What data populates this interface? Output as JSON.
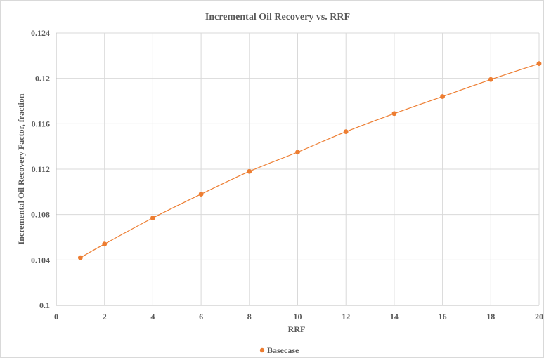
{
  "chart_data": {
    "type": "scatter",
    "title": "Incremental  Oil Recovery vs. RRF",
    "xlabel": "RRF",
    "ylabel": "Incremental  Oil Recovery Factor, fraction",
    "xlim": [
      0,
      20
    ],
    "ylim": [
      0.1,
      0.124
    ],
    "x_ticks": [
      "0",
      "2",
      "4",
      "6",
      "8",
      "10",
      "12",
      "14",
      "16",
      "18",
      "20"
    ],
    "y_ticks": [
      "0.1",
      "0.104",
      "0.108",
      "0.112",
      "0.116",
      "0.12",
      "0.124"
    ],
    "grid": true,
    "legend_position": "bottom",
    "series": [
      {
        "name": "Basecase",
        "color": "#ED7D31",
        "smooth_line": true,
        "x": [
          1,
          2,
          4,
          6,
          8,
          10,
          12,
          14,
          16,
          18,
          20
        ],
        "y": [
          0.1042,
          0.1054,
          0.1077,
          0.1098,
          0.1118,
          0.1135,
          0.1153,
          0.1169,
          0.1184,
          0.1199,
          0.1213
        ]
      }
    ]
  }
}
